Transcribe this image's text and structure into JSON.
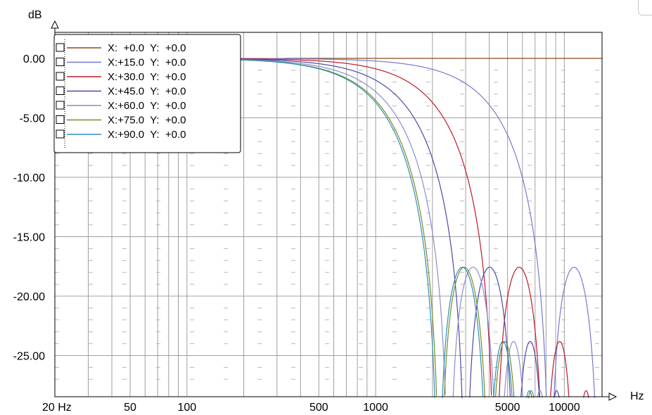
{
  "chart_data": {
    "type": "line",
    "xscale": "log",
    "xlim": [
      20,
      20000
    ],
    "ylim": [
      -28.5,
      2.3
    ],
    "ylabel": "dB",
    "xlabel": "Hz",
    "yticks": [
      {
        "value": 0,
        "label": "0.00"
      },
      {
        "value": -5,
        "label": "-5.00"
      },
      {
        "value": -10,
        "label": "-10.00"
      },
      {
        "value": -15,
        "label": "-15.00"
      },
      {
        "value": -20,
        "label": "-20.00"
      },
      {
        "value": -25,
        "label": "-25.00"
      }
    ],
    "xticks": [
      {
        "value": 20,
        "label": "20 Hz"
      },
      {
        "value": 50,
        "label": "50"
      },
      {
        "value": 100,
        "label": "100"
      },
      {
        "value": 500,
        "label": "500"
      },
      {
        "value": 1000,
        "label": "1000"
      },
      {
        "value": 5000,
        "label": "5000"
      },
      {
        "value": 10000,
        "label": "10000"
      }
    ],
    "grid": true,
    "legend_position": "top-left",
    "series": [
      {
        "name": "X:  +0.0  Y:  +0.0",
        "color": "#8b4a1c",
        "f1": null
      },
      {
        "name": "X:+15.0  Y:  +0.0",
        "color": "#7878cc",
        "f1": 8400
      },
      {
        "name": "X:+30.0  Y:  +0.0",
        "color": "#c0182a",
        "f1": 4300
      },
      {
        "name": "X:+45.0  Y:  +0.0",
        "color": "#4a4aa8",
        "f1": 3000
      },
      {
        "name": "X:+60.0  Y:  +0.0",
        "color": "#8c8cd0",
        "f1": 2450
      },
      {
        "name": "X:+75.0  Y:  +0.0",
        "color": "#7a8a2a",
        "f1": 2200
      },
      {
        "name": "X:+90.0  Y:  +0.0",
        "color": "#2a90b8",
        "f1": 2150
      }
    ]
  }
}
